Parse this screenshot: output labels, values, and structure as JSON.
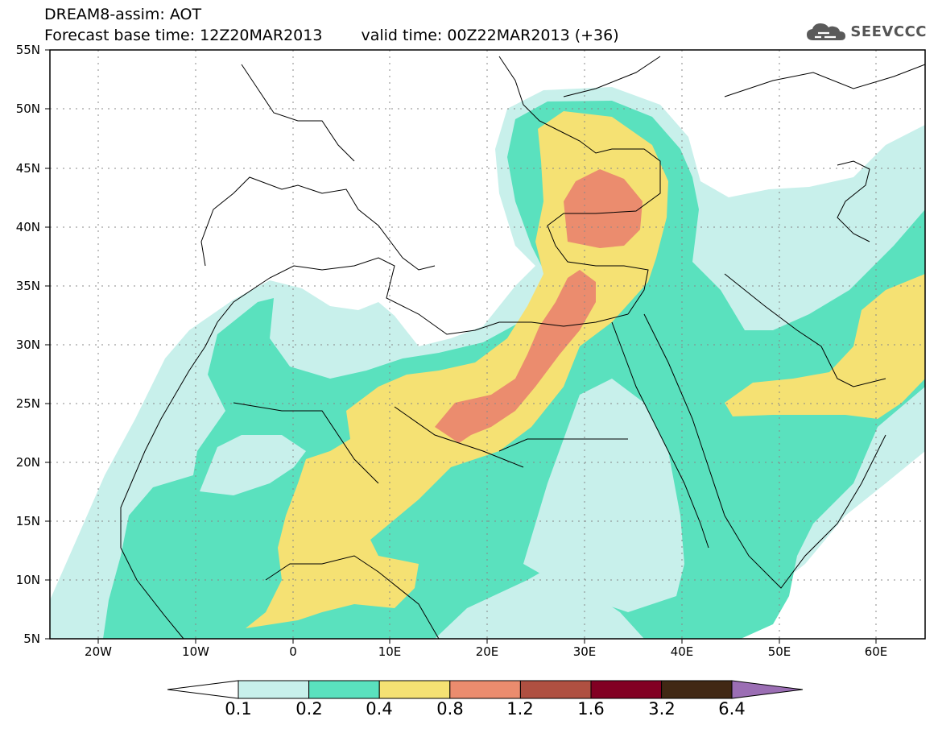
{
  "header": {
    "title": "DREAM8-assim: AOT",
    "base_time": "Forecast base time: 12Z20MAR2013",
    "valid_time": "valid time: 00Z22MAR2013 (+36)",
    "logo_text": "SEEVCCC"
  },
  "map": {
    "projection": "lat-lon",
    "lon_range_deg": [
      -25,
      65
    ],
    "lat_range_deg": [
      5,
      55
    ],
    "x_ticks": [
      "20W",
      "10W",
      "0",
      "10E",
      "20E",
      "30E",
      "40E",
      "50E",
      "60E"
    ],
    "y_ticks": [
      "55N",
      "50N",
      "45N",
      "40N",
      "35N",
      "30N",
      "25N",
      "20N",
      "15N",
      "10N",
      "5N"
    ],
    "gridlines": "dotted",
    "coastlines_color": "#000000"
  },
  "legend": {
    "levels": [
      "0.1",
      "0.2",
      "0.4",
      "0.8",
      "1.2",
      "1.6",
      "3.2",
      "6.4"
    ],
    "colors": [
      "#c8f0eb",
      "#5ae1be",
      "#f5e173",
      "#eb8c6e",
      "#af5041",
      "#820023",
      "#412814",
      "#9b6eb4"
    ],
    "under_color": "#ffffff"
  }
}
